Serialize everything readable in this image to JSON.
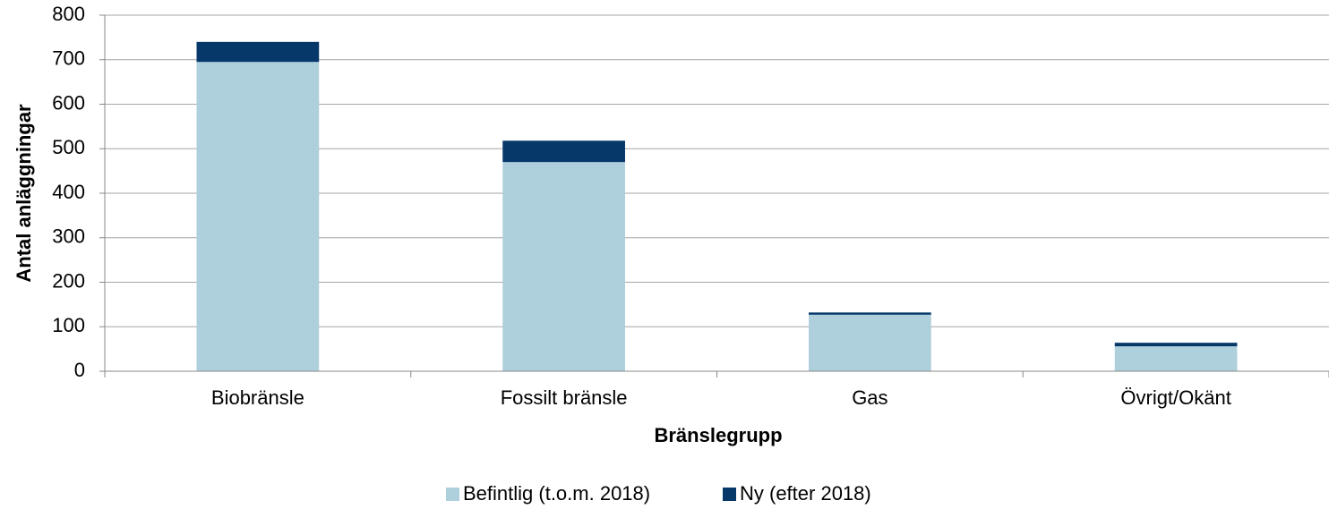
{
  "chart_data": {
    "type": "stacked_bar",
    "categories": [
      "Biobränsle",
      "Fossilt bränsle",
      "Gas",
      "Övrigt/Okänt"
    ],
    "series": [
      {
        "name": "Befintlig (t.o.m. 2018)",
        "color": "#aecfdc",
        "values": [
          695,
          470,
          127,
          56
        ]
      },
      {
        "name": "Ny (efter 2018)",
        "color": "#06386a",
        "values": [
          45,
          48,
          5,
          8
        ]
      }
    ],
    "xlabel": "Bränslegrupp",
    "ylabel": "Antal anläggningar",
    "ylim": [
      0,
      800
    ],
    "yticks": [
      0,
      100,
      200,
      300,
      400,
      500,
      600,
      700,
      800
    ],
    "grid": true,
    "legend": "bottom"
  }
}
